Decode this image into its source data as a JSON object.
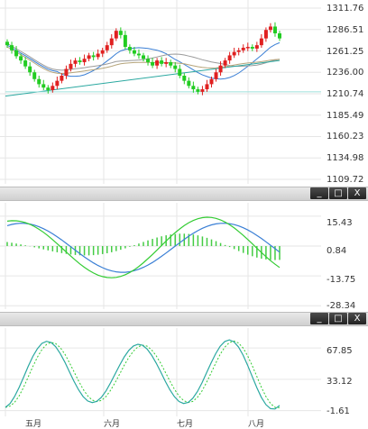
{
  "price_axis": [
    "1311.76",
    "1286.51",
    "1261.25",
    "1236.00",
    "1210.74",
    "1185.49",
    "1160.23",
    "1134.98",
    "1109.72"
  ],
  "macd_axis": [
    "15.43",
    "0.84",
    "-13.75",
    "-28.34"
  ],
  "stoch_axis": [
    "67.85",
    "33.12",
    "-1.61"
  ],
  "months": [
    "五月",
    "六月",
    "七月",
    "八月"
  ],
  "window_controls": {
    "minimize": "_",
    "maximize": "□",
    "close": "X"
  },
  "colors": {
    "up": "#e02020",
    "down": "#22cc22",
    "ma_blue": "#3a7fd5",
    "ma_gray": "#9a9a9a",
    "ma_tan": "#b5a47a",
    "teal": "#2aa8a0",
    "macd_hist": "#44cc44",
    "grid": "#e6e6e6"
  },
  "chart_data": [
    {
      "type": "candlestick",
      "panel": "price",
      "y_axis_ticks": [
        1311.76,
        1286.51,
        1261.25,
        1236.0,
        1210.74,
        1185.49,
        1160.23,
        1134.98,
        1109.72
      ],
      "close": [
        1268,
        1262,
        1255,
        1250,
        1243,
        1236,
        1228,
        1222,
        1218,
        1215,
        1220,
        1226,
        1232,
        1240,
        1246,
        1250,
        1248,
        1252,
        1256,
        1254,
        1258,
        1262,
        1268,
        1276,
        1285,
        1280,
        1266,
        1262,
        1258,
        1256,
        1252,
        1248,
        1244,
        1250,
        1246,
        1248,
        1244,
        1240,
        1232,
        1226,
        1220,
        1216,
        1213,
        1216,
        1222,
        1228,
        1236,
        1244,
        1250,
        1256,
        1260,
        1262,
        1265,
        1266,
        1264,
        1268,
        1276,
        1286,
        1290,
        1282,
        1276
      ]
    },
    {
      "type": "line",
      "panel": "macd",
      "y_axis_ticks": [
        15.43,
        0.84,
        -13.75,
        -28.34
      ]
    },
    {
      "type": "line",
      "panel": "stochastic",
      "y_axis_ticks": [
        67.85,
        33.12,
        -1.61
      ]
    }
  ]
}
